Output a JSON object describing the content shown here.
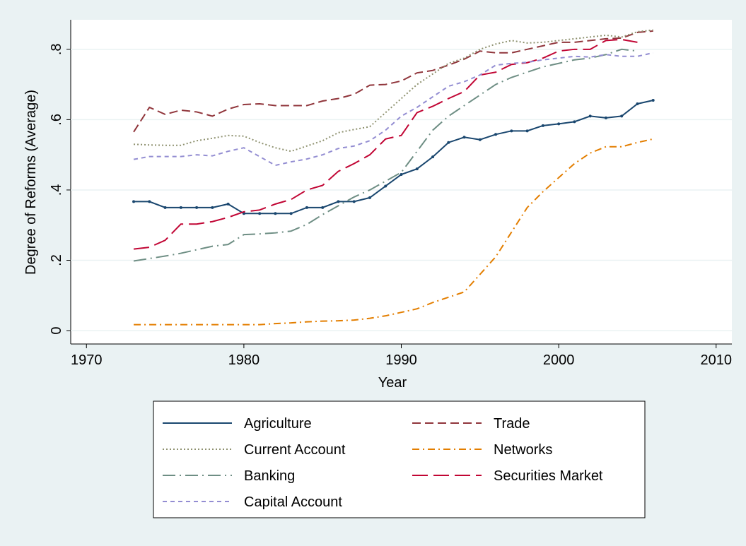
{
  "chart_data": {
    "type": "line",
    "x_label": "Year",
    "y_label": "Degree of Reforms (Average)",
    "x": [
      1973,
      1974,
      1975,
      1976,
      1977,
      1978,
      1979,
      1980,
      1981,
      1982,
      1983,
      1984,
      1985,
      1986,
      1987,
      1988,
      1989,
      1990,
      1991,
      1992,
      1993,
      1994,
      1995,
      1996,
      1997,
      1998,
      1999,
      2000,
      2001,
      2002,
      2003,
      2004,
      2005,
      2006
    ],
    "xlim": [
      1969,
      2011
    ],
    "xticks": [
      1970,
      1980,
      1990,
      2000,
      2010
    ],
    "ylim": [
      -0.038,
      0.884
    ],
    "yticks": [
      0,
      {
        "value": 0.2,
        "label": ".2"
      },
      {
        "value": 0.4,
        "label": ".4"
      },
      {
        "value": 0.6,
        "label": ".6"
      },
      {
        "value": 0.8,
        "label": ".8"
      }
    ],
    "grid": true,
    "series": [
      {
        "name": "Agriculture",
        "color": "#1a476f",
        "dash": "solid",
        "markers": true,
        "values": [
          0.367,
          0.367,
          0.35,
          0.35,
          0.35,
          0.35,
          0.36,
          0.333,
          0.333,
          0.333,
          0.333,
          0.35,
          0.35,
          0.367,
          0.367,
          0.378,
          0.411,
          0.444,
          0.46,
          0.494,
          0.535,
          0.55,
          0.543,
          0.558,
          0.568,
          0.568,
          0.583,
          0.588,
          0.594,
          0.61,
          0.605,
          0.61,
          0.645,
          0.655
        ]
      },
      {
        "name": "Trade",
        "color": "#90353b",
        "dash": "dash",
        "values": [
          0.565,
          0.635,
          0.615,
          0.627,
          0.622,
          0.61,
          0.63,
          0.643,
          0.645,
          0.64,
          0.64,
          0.64,
          0.653,
          0.66,
          0.672,
          0.698,
          0.7,
          0.71,
          0.733,
          0.74,
          0.755,
          0.772,
          0.795,
          0.79,
          0.79,
          0.8,
          0.81,
          0.82,
          0.82,
          0.825,
          0.83,
          0.832,
          0.848,
          0.852
        ]
      },
      {
        "name": "Current Account",
        "color": "#8f9270",
        "dash": "dot",
        "values": [
          0.53,
          0.528,
          0.527,
          0.527,
          0.54,
          0.547,
          0.555,
          0.553,
          0.535,
          0.52,
          0.51,
          0.525,
          0.54,
          0.563,
          0.572,
          0.58,
          0.62,
          0.66,
          0.7,
          0.73,
          0.76,
          0.775,
          0.8,
          0.815,
          0.825,
          0.818,
          0.82,
          0.825,
          0.83,
          0.835,
          0.84,
          0.835,
          0.85,
          0.855
        ]
      },
      {
        "name": "Networks",
        "color": "#e37e00",
        "dash": "dashdot",
        "values": [
          0.017,
          0.017,
          0.017,
          0.017,
          0.017,
          0.017,
          0.017,
          0.017,
          0.017,
          0.02,
          0.022,
          0.025,
          0.027,
          0.028,
          0.03,
          0.035,
          0.042,
          0.052,
          0.062,
          0.08,
          0.095,
          0.11,
          0.16,
          0.21,
          0.28,
          0.35,
          0.395,
          0.435,
          0.475,
          0.505,
          0.523,
          0.523,
          0.535,
          0.545
        ]
      },
      {
        "name": "Banking",
        "color": "#6e8e84",
        "dash": "longdashdot",
        "values": [
          0.198,
          0.205,
          0.212,
          0.22,
          0.23,
          0.24,
          0.245,
          0.273,
          0.275,
          0.278,
          0.283,
          0.302,
          0.33,
          0.355,
          0.38,
          0.4,
          0.425,
          0.45,
          0.51,
          0.57,
          0.61,
          0.64,
          0.67,
          0.7,
          0.72,
          0.735,
          0.75,
          0.76,
          0.77,
          0.775,
          0.785,
          0.8,
          0.795,
          null
        ]
      },
      {
        "name": "Securities Market",
        "color": "#c10534",
        "dash": "longdash",
        "values": [
          0.232,
          0.237,
          0.257,
          0.303,
          0.303,
          0.31,
          0.322,
          0.338,
          0.343,
          0.36,
          0.373,
          0.4,
          0.413,
          0.453,
          0.475,
          0.5,
          0.545,
          0.555,
          0.62,
          0.638,
          0.66,
          0.68,
          0.727,
          0.735,
          0.757,
          0.762,
          0.775,
          0.795,
          0.8,
          0.8,
          0.825,
          0.828,
          0.82,
          null
        ]
      },
      {
        "name": "Capital Account",
        "color": "#938dd2",
        "dash": "shortdash",
        "values": [
          0.487,
          0.495,
          0.495,
          0.495,
          0.5,
          0.497,
          0.51,
          0.52,
          0.495,
          0.47,
          0.48,
          0.488,
          0.5,
          0.518,
          0.525,
          0.54,
          0.57,
          0.61,
          0.635,
          0.665,
          0.695,
          0.708,
          0.727,
          0.755,
          0.76,
          0.763,
          0.77,
          0.775,
          0.78,
          0.778,
          0.785,
          0.78,
          0.78,
          0.79
        ]
      }
    ]
  }
}
